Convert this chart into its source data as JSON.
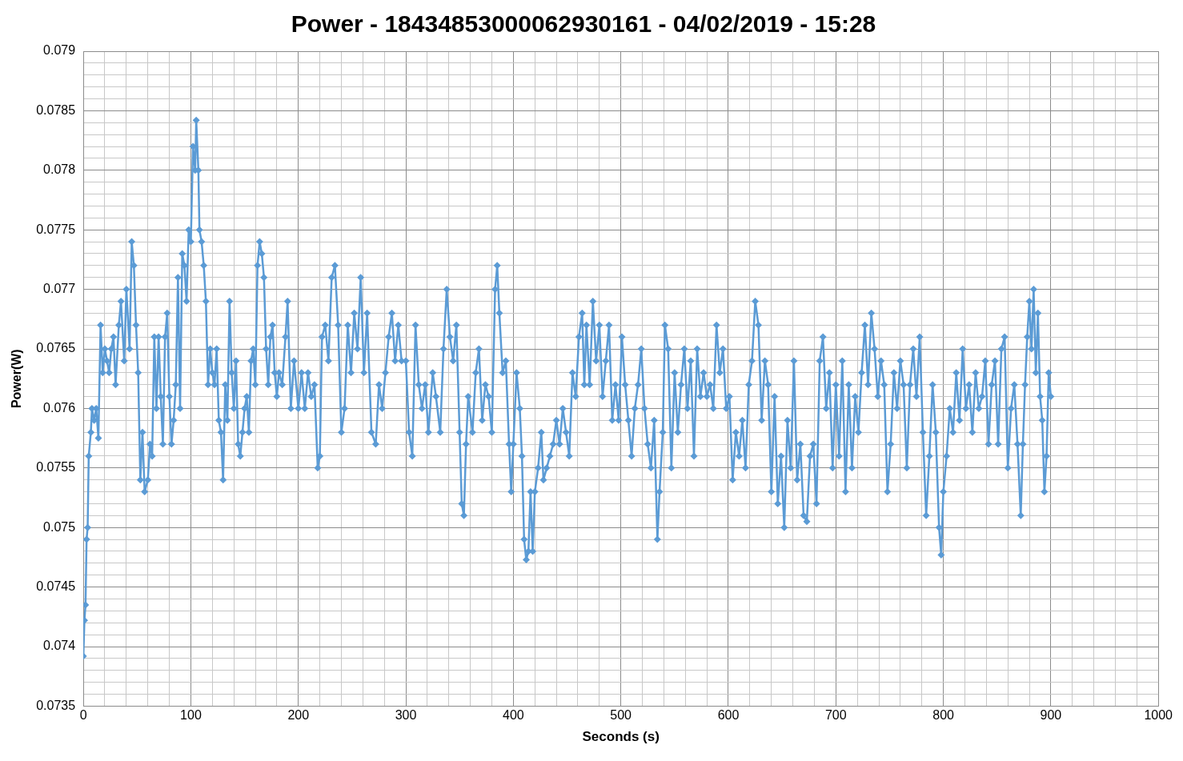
{
  "chart_data": {
    "type": "line",
    "title": "Power - 18434853000062930161 - 04/02/2019 - 15:28",
    "xlabel": "Seconds (s)",
    "ylabel": "Power(W)",
    "marker": "diamond",
    "line_style": "solid",
    "grid": true,
    "legend": false,
    "xlim": [
      0,
      1000
    ],
    "xticks": [
      0,
      {
        "value": 20,
        "label": null
      },
      {
        "value": 40,
        "label": null
      },
      {
        "value": 60,
        "label": null
      },
      {
        "value": 80,
        "label": null
      },
      100,
      {
        "value": 120,
        "label": null
      },
      {
        "value": 140,
        "label": null
      },
      {
        "value": 160,
        "label": null
      },
      {
        "value": 180,
        "label": null
      },
      200,
      {
        "value": 220,
        "label": null
      },
      {
        "value": 240,
        "label": null
      },
      {
        "value": 260,
        "label": null
      },
      {
        "value": 280,
        "label": null
      },
      300,
      {
        "value": 320,
        "label": null
      },
      {
        "value": 340,
        "label": null
      },
      {
        "value": 360,
        "label": null
      },
      {
        "value": 380,
        "label": null
      },
      400,
      {
        "value": 420,
        "label": null
      },
      {
        "value": 440,
        "label": null
      },
      {
        "value": 460,
        "label": null
      },
      {
        "value": 480,
        "label": null
      },
      500,
      {
        "value": 520,
        "label": null
      },
      {
        "value": 540,
        "label": null
      },
      {
        "value": 560,
        "label": null
      },
      {
        "value": 580,
        "label": null
      },
      600,
      {
        "value": 620,
        "label": null
      },
      {
        "value": 640,
        "label": null
      },
      {
        "value": 660,
        "label": null
      },
      {
        "value": 680,
        "label": null
      },
      700,
      {
        "value": 720,
        "label": null
      },
      {
        "value": 740,
        "label": null
      },
      {
        "value": 760,
        "label": null
      },
      {
        "value": 780,
        "label": null
      },
      800,
      {
        "value": 820,
        "label": null
      },
      {
        "value": 840,
        "label": null
      },
      {
        "value": 860,
        "label": null
      },
      {
        "value": 880,
        "label": null
      },
      900,
      {
        "value": 920,
        "label": null
      },
      {
        "value": 940,
        "label": null
      },
      {
        "value": 960,
        "label": null
      },
      {
        "value": 980,
        "label": null
      },
      1000
    ],
    "ylim": [
      0.0735,
      0.079
    ],
    "yticks": [
      0.0735,
      {
        "value": 0.0736,
        "label": null
      },
      {
        "value": 0.0737,
        "label": null
      },
      {
        "value": 0.0738,
        "label": null
      },
      {
        "value": 0.0739,
        "label": null
      },
      0.074,
      {
        "value": 0.0741,
        "label": null
      },
      {
        "value": 0.0742,
        "label": null
      },
      {
        "value": 0.0743,
        "label": null
      },
      {
        "value": 0.0744,
        "label": null
      },
      0.0745,
      {
        "value": 0.0746,
        "label": null
      },
      {
        "value": 0.0747,
        "label": null
      },
      {
        "value": 0.0748,
        "label": null
      },
      {
        "value": 0.0749,
        "label": null
      },
      0.075,
      {
        "value": 0.0751,
        "label": null
      },
      {
        "value": 0.0752,
        "label": null
      },
      {
        "value": 0.0753,
        "label": null
      },
      {
        "value": 0.0754,
        "label": null
      },
      0.0755,
      {
        "value": 0.0756,
        "label": null
      },
      {
        "value": 0.0757,
        "label": null
      },
      {
        "value": 0.0758,
        "label": null
      },
      {
        "value": 0.0759,
        "label": null
      },
      0.076,
      {
        "value": 0.0761,
        "label": null
      },
      {
        "value": 0.0762,
        "label": null
      },
      {
        "value": 0.0763,
        "label": null
      },
      {
        "value": 0.0764,
        "label": null
      },
      0.0765,
      {
        "value": 0.0766,
        "label": null
      },
      {
        "value": 0.0767,
        "label": null
      },
      {
        "value": 0.0768,
        "label": null
      },
      {
        "value": 0.0769,
        "label": null
      },
      0.077,
      {
        "value": 0.0771,
        "label": null
      },
      {
        "value": 0.0772,
        "label": null
      },
      {
        "value": 0.0773,
        "label": null
      },
      {
        "value": 0.0774,
        "label": null
      },
      0.0775,
      {
        "value": 0.0776,
        "label": null
      },
      {
        "value": 0.0777,
        "label": null
      },
      {
        "value": 0.0778,
        "label": null
      },
      {
        "value": 0.0779,
        "label": null
      },
      0.078,
      {
        "value": 0.0781,
        "label": null
      },
      {
        "value": 0.0782,
        "label": null
      },
      {
        "value": 0.0783,
        "label": null
      },
      {
        "value": 0.0784,
        "label": null
      },
      0.0785,
      {
        "value": 0.0786,
        "label": null
      },
      {
        "value": 0.0787,
        "label": null
      },
      {
        "value": 0.0788,
        "label": null
      },
      {
        "value": 0.0789,
        "label": null
      },
      0.079
    ],
    "series": [
      {
        "color": "#5b9bd5",
        "x": [
          0,
          1,
          2,
          3,
          4,
          5,
          7,
          8,
          10,
          12,
          14,
          16,
          18,
          20,
          22,
          24,
          26,
          28,
          30,
          33,
          35,
          38,
          40,
          43,
          45,
          47,
          49,
          51,
          53,
          55,
          57,
          60,
          62,
          64,
          66,
          68,
          70,
          72,
          74,
          76,
          78,
          80,
          82,
          84,
          86,
          88,
          90,
          92,
          94,
          96,
          98,
          100,
          102,
          104,
          105,
          107,
          108,
          110,
          112,
          114,
          116,
          118,
          120,
          122,
          124,
          126,
          128,
          130,
          132,
          134,
          136,
          138,
          140,
          142,
          144,
          146,
          148,
          150,
          152,
          154,
          156,
          158,
          160,
          162,
          164,
          166,
          168,
          170,
          172,
          174,
          176,
          178,
          180,
          182,
          185,
          188,
          190,
          193,
          196,
          200,
          203,
          206,
          209,
          212,
          215,
          218,
          220,
          222,
          225,
          228,
          231,
          234,
          237,
          240,
          243,
          246,
          249,
          252,
          255,
          258,
          261,
          264,
          268,
          272,
          275,
          278,
          281,
          284,
          287,
          290,
          293,
          296,
          300,
          303,
          306,
          309,
          312,
          315,
          318,
          321,
          325,
          328,
          332,
          335,
          338,
          341,
          344,
          347,
          350,
          352,
          354,
          356,
          358,
          362,
          365,
          368,
          371,
          374,
          377,
          380,
          383,
          385,
          387,
          390,
          393,
          396,
          398,
          400,
          403,
          406,
          408,
          410,
          412,
          414,
          416,
          418,
          420,
          423,
          426,
          428,
          431,
          434,
          437,
          440,
          443,
          446,
          449,
          452,
          455,
          458,
          461,
          464,
          466,
          468,
          471,
          474,
          477,
          480,
          483,
          486,
          489,
          492,
          495,
          498,
          501,
          504,
          507,
          510,
          513,
          516,
          519,
          522,
          525,
          528,
          531,
          534,
          536,
          539,
          541,
          544,
          547,
          550,
          553,
          556,
          559,
          562,
          565,
          568,
          571,
          574,
          577,
          580,
          583,
          586,
          589,
          592,
          595,
          598,
          601,
          604,
          607,
          610,
          613,
          616,
          619,
          622,
          625,
          628,
          631,
          634,
          637,
          640,
          643,
          646,
          649,
          652,
          655,
          658,
          661,
          664,
          667,
          670,
          673,
          676,
          679,
          682,
          685,
          688,
          691,
          694,
          697,
          700,
          703,
          706,
          709,
          712,
          715,
          718,
          721,
          724,
          727,
          730,
          733,
          736,
          739,
          742,
          745,
          748,
          751,
          754,
          757,
          760,
          763,
          766,
          769,
          772,
          775,
          778,
          781,
          784,
          787,
          790,
          793,
          796,
          798,
          800,
          803,
          806,
          809,
          812,
          815,
          818,
          821,
          824,
          827,
          830,
          833,
          836,
          839,
          842,
          845,
          848,
          851,
          854,
          857,
          860,
          863,
          866,
          869,
          872,
          874,
          876,
          878,
          880,
          882,
          884,
          886,
          888,
          890,
          892,
          894,
          896,
          898,
          900
        ],
        "values": [
          0.07392,
          0.07422,
          0.07435,
          0.0749,
          0.075,
          0.0756,
          0.0758,
          0.076,
          0.0759,
          0.076,
          0.07575,
          0.0767,
          0.0763,
          0.0765,
          0.0764,
          0.0763,
          0.0765,
          0.0766,
          0.0762,
          0.0767,
          0.0769,
          0.0764,
          0.077,
          0.0765,
          0.0774,
          0.0772,
          0.0767,
          0.0763,
          0.0754,
          0.0758,
          0.0753,
          0.0754,
          0.0757,
          0.0756,
          0.0766,
          0.076,
          0.0766,
          0.0761,
          0.0757,
          0.0766,
          0.0768,
          0.0761,
          0.0757,
          0.0759,
          0.0762,
          0.0771,
          0.076,
          0.0773,
          0.0772,
          0.0769,
          0.0775,
          0.0774,
          0.0782,
          0.078,
          0.07842,
          0.078,
          0.0775,
          0.0774,
          0.0772,
          0.0769,
          0.0762,
          0.0765,
          0.0763,
          0.0762,
          0.0765,
          0.0759,
          0.0758,
          0.0754,
          0.0762,
          0.0759,
          0.0769,
          0.0763,
          0.076,
          0.0764,
          0.0757,
          0.0756,
          0.0758,
          0.076,
          0.0761,
          0.0758,
          0.0764,
          0.0765,
          0.0762,
          0.0772,
          0.0774,
          0.0773,
          0.0771,
          0.0765,
          0.0762,
          0.0766,
          0.0767,
          0.0763,
          0.0761,
          0.0763,
          0.0762,
          0.0766,
          0.0769,
          0.076,
          0.0764,
          0.076,
          0.0763,
          0.076,
          0.0763,
          0.0761,
          0.0762,
          0.0755,
          0.0756,
          0.0766,
          0.0767,
          0.0764,
          0.0771,
          0.0772,
          0.0767,
          0.0758,
          0.076,
          0.0767,
          0.0763,
          0.0768,
          0.0765,
          0.0771,
          0.0763,
          0.0768,
          0.0758,
          0.0757,
          0.0762,
          0.076,
          0.0763,
          0.0766,
          0.0768,
          0.0764,
          0.0767,
          0.0764,
          0.0764,
          0.0758,
          0.0756,
          0.0767,
          0.0762,
          0.076,
          0.0762,
          0.0758,
          0.0763,
          0.0761,
          0.0758,
          0.0765,
          0.077,
          0.0766,
          0.0764,
          0.0767,
          0.0758,
          0.0752,
          0.0751,
          0.0757,
          0.0761,
          0.0758,
          0.0763,
          0.0765,
          0.0759,
          0.0762,
          0.0761,
          0.0758,
          0.077,
          0.0772,
          0.0768,
          0.0763,
          0.0764,
          0.0757,
          0.0753,
          0.0757,
          0.0763,
          0.076,
          0.0756,
          0.0749,
          0.07473,
          0.0748,
          0.0753,
          0.0748,
          0.0753,
          0.0755,
          0.0758,
          0.0754,
          0.0755,
          0.0756,
          0.0757,
          0.0759,
          0.0757,
          0.076,
          0.0758,
          0.0756,
          0.0763,
          0.0761,
          0.0766,
          0.0768,
          0.0762,
          0.0767,
          0.0762,
          0.0769,
          0.0764,
          0.0767,
          0.0761,
          0.0764,
          0.0767,
          0.0759,
          0.0762,
          0.0759,
          0.0766,
          0.0762,
          0.0759,
          0.0756,
          0.076,
          0.0762,
          0.0765,
          0.076,
          0.0757,
          0.0755,
          0.0759,
          0.0749,
          0.0753,
          0.0758,
          0.0767,
          0.0765,
          0.0755,
          0.0763,
          0.0758,
          0.0762,
          0.0765,
          0.076,
          0.0764,
          0.0756,
          0.0765,
          0.0761,
          0.0763,
          0.0761,
          0.0762,
          0.076,
          0.0767,
          0.0763,
          0.0765,
          0.076,
          0.0761,
          0.0754,
          0.0758,
          0.0756,
          0.0759,
          0.0755,
          0.0762,
          0.0764,
          0.0769,
          0.0767,
          0.0759,
          0.0764,
          0.0762,
          0.0753,
          0.0761,
          0.0752,
          0.0756,
          0.075,
          0.0759,
          0.0755,
          0.0764,
          0.0754,
          0.0757,
          0.0751,
          0.07505,
          0.0756,
          0.0757,
          0.0752,
          0.0764,
          0.0766,
          0.076,
          0.0763,
          0.0755,
          0.0762,
          0.0756,
          0.0764,
          0.0753,
          0.0762,
          0.0755,
          0.0761,
          0.0758,
          0.0763,
          0.0767,
          0.0762,
          0.0768,
          0.0765,
          0.0761,
          0.0764,
          0.0762,
          0.0753,
          0.0757,
          0.0763,
          0.076,
          0.0764,
          0.0762,
          0.0755,
          0.0762,
          0.0765,
          0.0761,
          0.0766,
          0.0758,
          0.0751,
          0.0756,
          0.0762,
          0.0758,
          0.075,
          0.07477,
          0.0753,
          0.0756,
          0.076,
          0.0758,
          0.0763,
          0.0759,
          0.0765,
          0.076,
          0.0762,
          0.0758,
          0.0763,
          0.076,
          0.0761,
          0.0764,
          0.0757,
          0.0762,
          0.0764,
          0.0757,
          0.0765,
          0.0766,
          0.0755,
          0.076,
          0.0762,
          0.0757,
          0.0751,
          0.0757,
          0.0762,
          0.0766,
          0.0769,
          0.0765,
          0.077,
          0.0763,
          0.0768,
          0.0761,
          0.0759,
          0.0753,
          0.0756,
          0.0763,
          0.0761
        ]
      }
    ]
  }
}
